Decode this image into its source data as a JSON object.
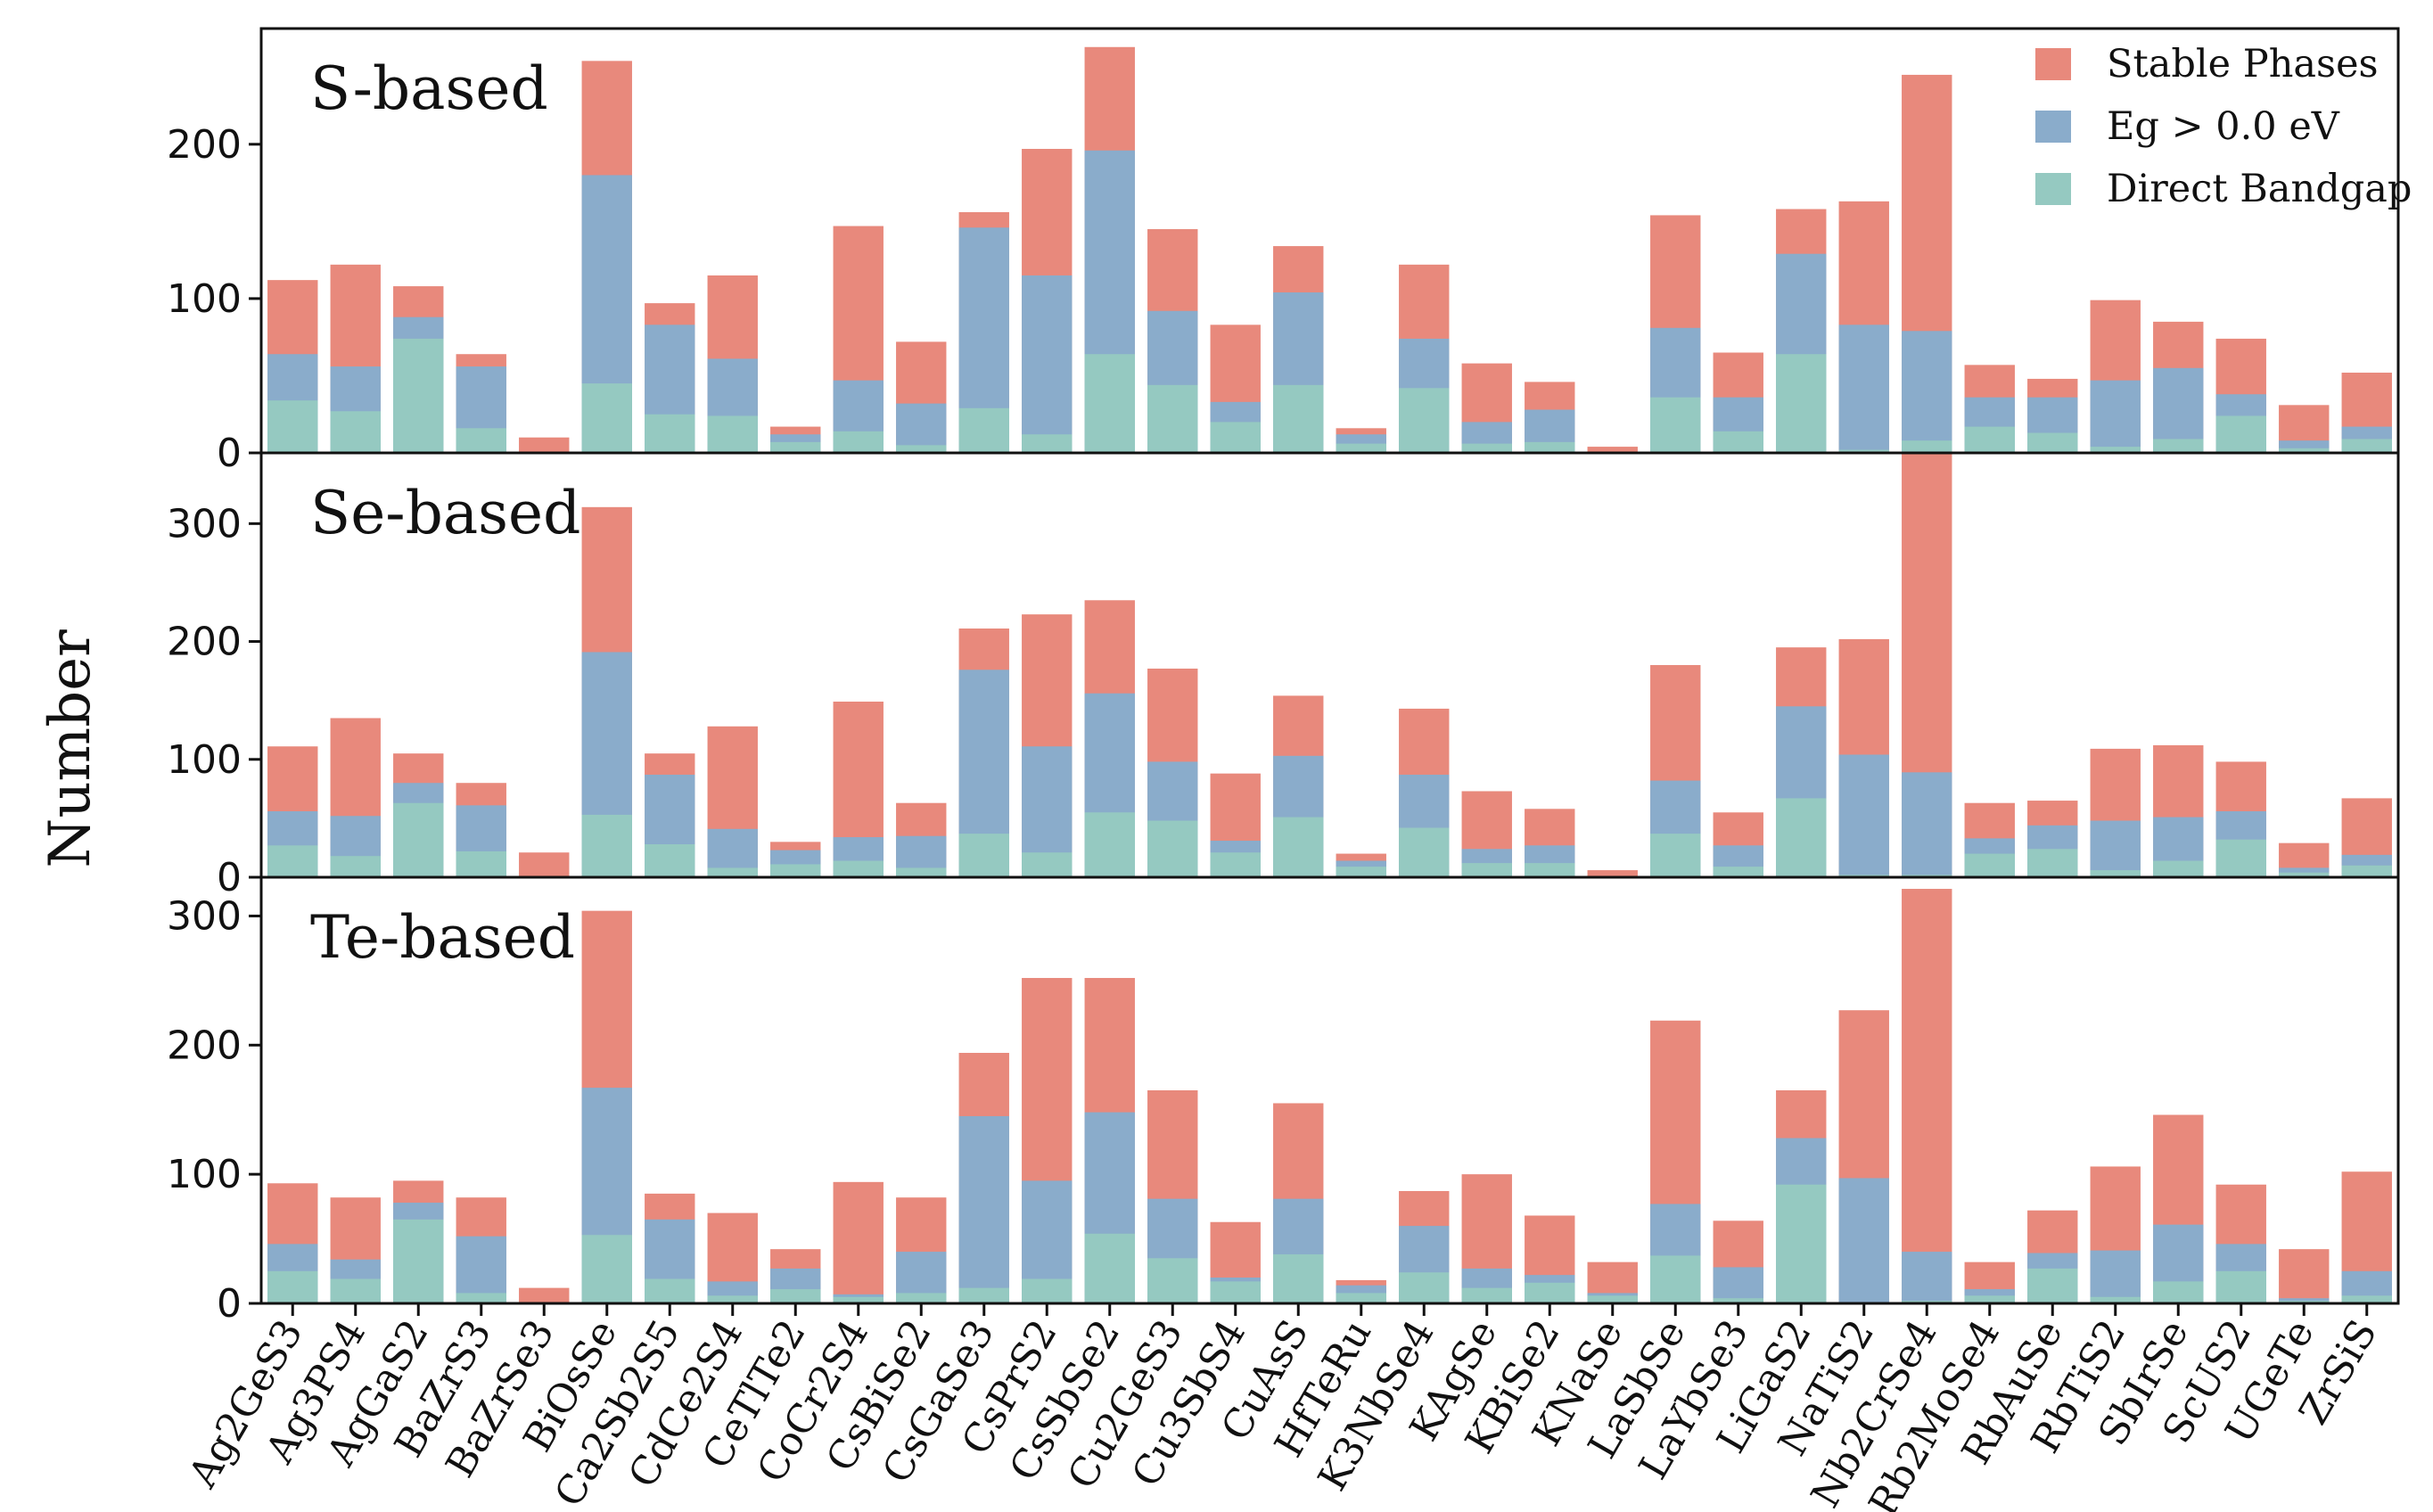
{
  "chart_data": {
    "type": "bar",
    "stacking": "overlay",
    "ylabel": "Number",
    "legend": {
      "placement": "top-right",
      "entries": [
        "Stable Phases",
        "Eg > 0.0 eV",
        "Direct Bandgap"
      ]
    },
    "colors": {
      "Stable Phases": "#e8897c",
      "Eg > 0.0 eV": "#8aaccb",
      "Direct Bandgap": "#95c9c1"
    },
    "categories": [
      "Ag2GeS3",
      "Ag3PS4",
      "AgGaS2",
      "BaZrS3",
      "BaZrSe3",
      "BiOsSe",
      "Ca2Sb2S5",
      "CdCe2S4",
      "CeTlTe2",
      "CoCr2S4",
      "CsBiSe2",
      "CsGaSe3",
      "CsPrS2",
      "CsSbSe2",
      "Cu2GeS3",
      "Cu3SbS4",
      "CuAsS",
      "HfTeRu",
      "K3NbSe4",
      "KAgSe",
      "KBiSe2",
      "KNaSe",
      "LaSbSe",
      "LaYbSe3",
      "LiGaS2",
      "NaTiS2",
      "Nb2CrSe4",
      "Rb2MoSe4",
      "RbAuSe",
      "RbTiS2",
      "SbIrSe",
      "ScUS2",
      "UGeTe",
      "ZrSiS"
    ],
    "panels": [
      {
        "title": "S-based",
        "ylim": [
          0,
          275
        ],
        "yticks": [
          0,
          100,
          200
        ],
        "series": [
          {
            "name": "Stable Phases",
            "values": [
              112,
              122,
              108,
              64,
              10,
              254,
              97,
              115,
              17,
              147,
              72,
              156,
              197,
              263,
              145,
              83,
              134,
              16,
              122,
              58,
              46,
              4,
              154,
              65,
              158,
              163,
              245,
              57,
              48,
              99,
              85,
              74,
              31,
              52
            ]
          },
          {
            "name": "Eg > 0.0 eV",
            "values": [
              64,
              56,
              88,
              56,
              0,
              180,
              83,
              61,
              12,
              47,
              32,
              146,
              115,
              196,
              92,
              33,
              104,
              12,
              74,
              20,
              28,
              0,
              81,
              36,
              129,
              83,
              79,
              36,
              36,
              47,
              55,
              38,
              8,
              17
            ]
          },
          {
            "name": "Direct Bandgap",
            "values": [
              34,
              27,
              74,
              16,
              0,
              45,
              25,
              24,
              7,
              14,
              5,
              29,
              12,
              64,
              44,
              20,
              44,
              6,
              42,
              6,
              7,
              0,
              36,
              14,
              64,
              2,
              8,
              17,
              13,
              4,
              9,
              24,
              3,
              9
            ]
          }
        ]
      },
      {
        "title": "Se-based",
        "ylim": [
          0,
          360
        ],
        "yticks": [
          0,
          100,
          200,
          300
        ],
        "series": [
          {
            "name": "Stable Phases",
            "values": [
              111,
              135,
              105,
              80,
              21,
              314,
              105,
              128,
              30,
              149,
              63,
              211,
              223,
              235,
              177,
              88,
              154,
              20,
              143,
              73,
              58,
              6,
              180,
              55,
              195,
              202,
              360,
              63,
              65,
              109,
              112,
              98,
              29,
              67
            ]
          },
          {
            "name": "Eg > 0.0 eV",
            "values": [
              56,
              52,
              80,
              61,
              0,
              191,
              87,
              41,
              23,
              34,
              35,
              176,
              111,
              156,
              98,
              31,
              103,
              14,
              87,
              24,
              27,
              0,
              82,
              27,
              145,
              104,
              89,
              33,
              44,
              48,
              51,
              56,
              8,
              19
            ]
          },
          {
            "name": "Direct Bandgap",
            "values": [
              27,
              18,
              63,
              22,
              0,
              53,
              28,
              8,
              11,
              14,
              8,
              37,
              21,
              55,
              48,
              21,
              51,
              9,
              42,
              12,
              12,
              0,
              37,
              9,
              67,
              2,
              2,
              20,
              24,
              6,
              14,
              32,
              4,
              10
            ]
          }
        ]
      },
      {
        "title": "Te-based",
        "ylim": [
          0,
          330
        ],
        "yticks": [
          0,
          100,
          200,
          300
        ],
        "series": [
          {
            "name": "Stable Phases",
            "values": [
              93,
              82,
              95,
              82,
              12,
              304,
              85,
              70,
              42,
              94,
              82,
              194,
              252,
              252,
              165,
              63,
              155,
              18,
              87,
              100,
              68,
              32,
              219,
              64,
              165,
              227,
              321,
              32,
              72,
              106,
              146,
              92,
              42,
              102
            ]
          },
          {
            "name": "Eg > 0.0 eV",
            "values": [
              46,
              34,
              78,
              52,
              0,
              167,
              65,
              17,
              27,
              7,
              40,
              145,
              95,
              148,
              81,
              20,
              81,
              14,
              60,
              27,
              22,
              8,
              77,
              28,
              128,
              97,
              40,
              11,
              39,
              41,
              61,
              46,
              4,
              25
            ]
          },
          {
            "name": "Direct Bandgap",
            "values": [
              25,
              19,
              65,
              8,
              0,
              53,
              19,
              6,
              11,
              5,
              8,
              12,
              19,
              54,
              35,
              17,
              38,
              8,
              24,
              12,
              16,
              6,
              37,
              4,
              92,
              0,
              2,
              6,
              27,
              5,
              17,
              25,
              2,
              6
            ]
          }
        ]
      }
    ]
  }
}
